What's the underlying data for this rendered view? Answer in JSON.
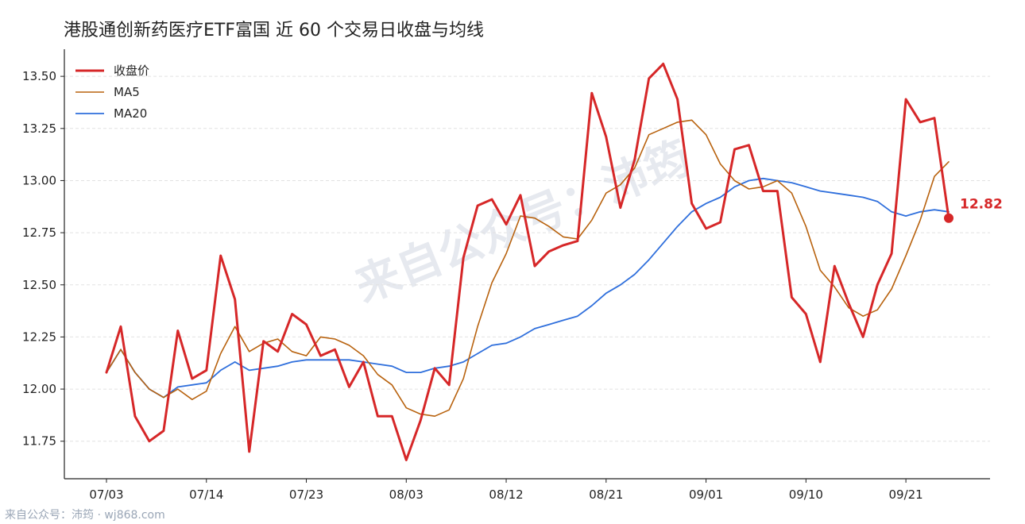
{
  "title": "港股通创新药医疗ETF富国 近 60 个交易日收盘与均线",
  "watermark_center": "来自公众号：沛筠",
  "watermark_bottom": "来自公众号：沛筠 · wj868.com",
  "colors": {
    "close": "#d62728",
    "ma5": "#b8620e",
    "ma20": "#2f6fdc",
    "grid": "#e2e2e2",
    "axis": "#222222"
  },
  "chart_data": {
    "type": "line",
    "ylim": [
      11.57,
      13.63
    ],
    "yticks": [
      11.75,
      12.0,
      12.25,
      12.5,
      12.75,
      13.0,
      13.25,
      13.5
    ],
    "ytick_labels": [
      "11.75",
      "12.00",
      "12.25",
      "12.50",
      "12.75",
      "13.00",
      "13.25",
      "13.50"
    ],
    "xticks": [
      {
        "index": 0,
        "label": "07/03"
      },
      {
        "index": 7,
        "label": "07/14"
      },
      {
        "index": 14,
        "label": "07/23"
      },
      {
        "index": 21,
        "label": "08/03"
      },
      {
        "index": 28,
        "label": "08/12"
      },
      {
        "index": 35,
        "label": "08/21"
      },
      {
        "index": 42,
        "label": "09/01"
      },
      {
        "index": 49,
        "label": "09/10"
      },
      {
        "index": 56,
        "label": "09/21"
      }
    ],
    "legend_position": "top-left",
    "grid": "horizontal-dashed",
    "series": [
      {
        "name": "收盘价",
        "key": "close",
        "values": [
          12.08,
          12.3,
          11.87,
          11.75,
          11.8,
          12.28,
          12.05,
          12.09,
          12.64,
          12.43,
          11.7,
          12.23,
          12.18,
          12.36,
          12.31,
          12.16,
          12.19,
          12.01,
          12.13,
          11.87,
          11.87,
          11.66,
          11.85,
          12.1,
          12.02,
          12.63,
          12.88,
          12.91,
          12.79,
          12.93,
          12.59,
          12.66,
          12.69,
          12.71,
          13.42,
          13.21,
          12.87,
          13.1,
          13.49,
          13.56,
          13.39,
          12.89,
          12.77,
          12.8,
          13.15,
          13.17,
          12.95,
          12.95,
          12.44,
          12.36,
          12.13,
          12.59,
          12.41,
          12.25,
          12.5,
          12.65,
          13.39,
          13.28,
          13.3,
          12.82
        ]
      },
      {
        "name": "MA5",
        "key": "ma5",
        "values": [
          12.08,
          12.19,
          12.08,
          12.0,
          11.96,
          12.0,
          11.95,
          11.99,
          12.17,
          12.3,
          12.18,
          12.22,
          12.24,
          12.18,
          12.16,
          12.25,
          12.24,
          12.21,
          12.16,
          12.07,
          12.02,
          11.91,
          11.88,
          11.87,
          11.9,
          12.05,
          12.3,
          12.51,
          12.65,
          12.83,
          12.82,
          12.78,
          12.73,
          12.72,
          12.81,
          12.94,
          12.98,
          13.06,
          13.22,
          13.25,
          13.28,
          13.29,
          13.22,
          13.08,
          13.0,
          12.96,
          12.97,
          13.0,
          12.94,
          12.78,
          12.57,
          12.49,
          12.39,
          12.35,
          12.38,
          12.48,
          12.64,
          12.81,
          13.02,
          13.09
        ]
      },
      {
        "name": "MA20",
        "key": "ma20",
        "values": [
          12.08,
          12.19,
          12.08,
          12.0,
          11.96,
          12.01,
          12.02,
          12.03,
          12.09,
          12.13,
          12.09,
          12.1,
          12.11,
          12.13,
          12.14,
          12.14,
          12.14,
          12.14,
          12.13,
          12.12,
          12.11,
          12.08,
          12.08,
          12.1,
          12.11,
          12.13,
          12.17,
          12.21,
          12.22,
          12.25,
          12.29,
          12.31,
          12.33,
          12.35,
          12.4,
          12.46,
          12.5,
          12.55,
          12.62,
          12.7,
          12.78,
          12.85,
          12.89,
          12.92,
          12.97,
          13.0,
          13.01,
          13.0,
          12.99,
          12.97,
          12.95,
          12.94,
          12.93,
          12.92,
          12.9,
          12.85,
          12.83,
          12.85,
          12.86,
          12.85
        ]
      }
    ],
    "last_value": 12.82,
    "last_value_label": "12.82"
  }
}
